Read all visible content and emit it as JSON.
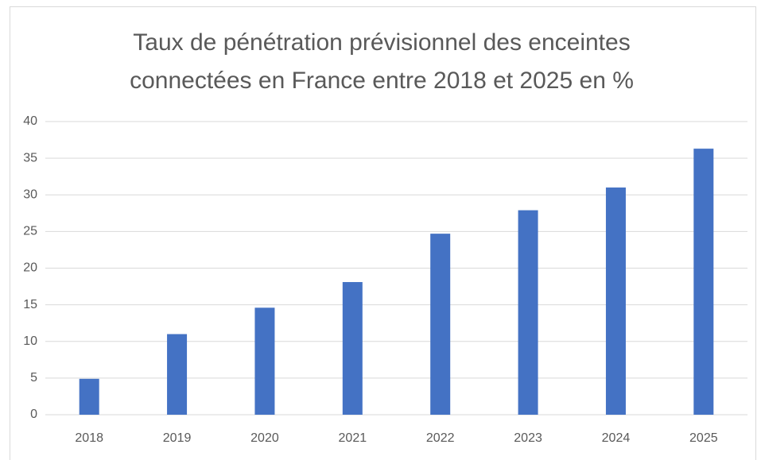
{
  "chart_data": {
    "type": "bar",
    "title": "Taux de pénétration prévisionnel des enceintes connectées en France entre 2018 et 2025 en %",
    "categories": [
      "2018",
      "2019",
      "2020",
      "2021",
      "2022",
      "2023",
      "2024",
      "2025"
    ],
    "values": [
      4.9,
      11,
      14.6,
      18.1,
      24.7,
      27.9,
      31,
      36.3
    ],
    "color": "#4472c4",
    "ylim": [
      0,
      40
    ],
    "yticks": [
      0,
      5,
      10,
      15,
      20,
      25,
      30,
      35,
      40
    ],
    "grid": true
  }
}
